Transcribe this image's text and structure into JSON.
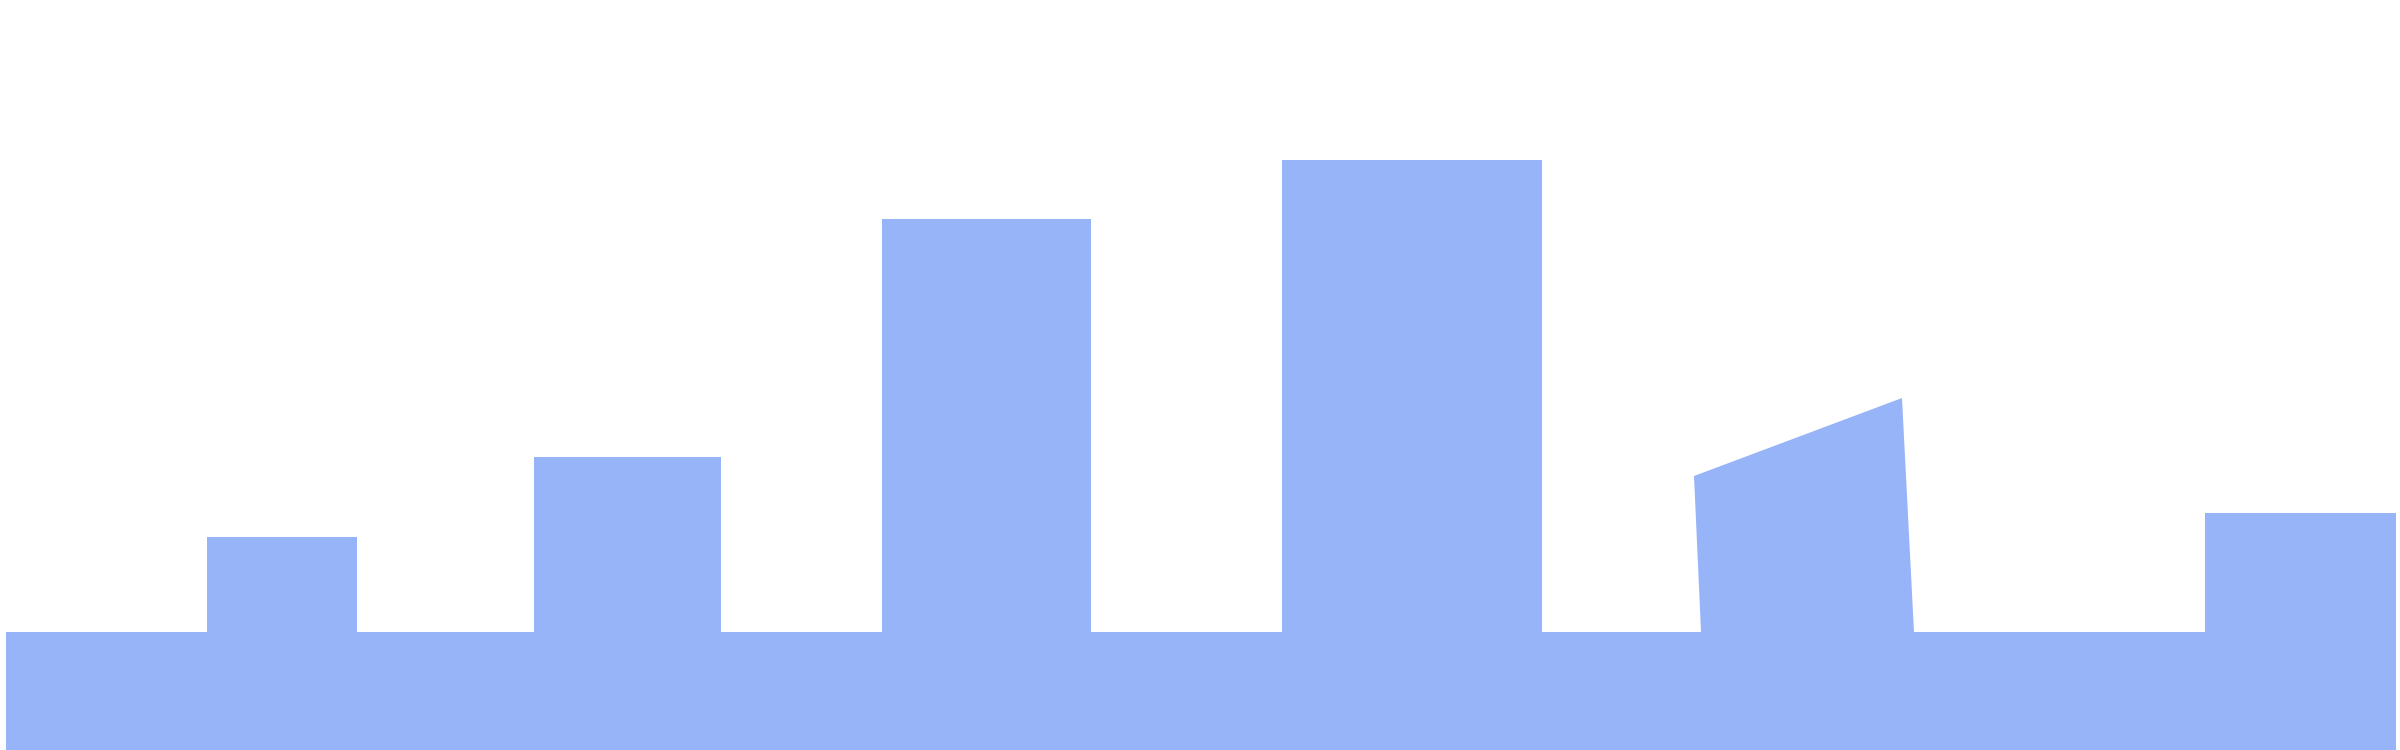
{
  "scene": {
    "background_color": "#FFFFFF",
    "fill_color": "#98B4F8"
  }
}
